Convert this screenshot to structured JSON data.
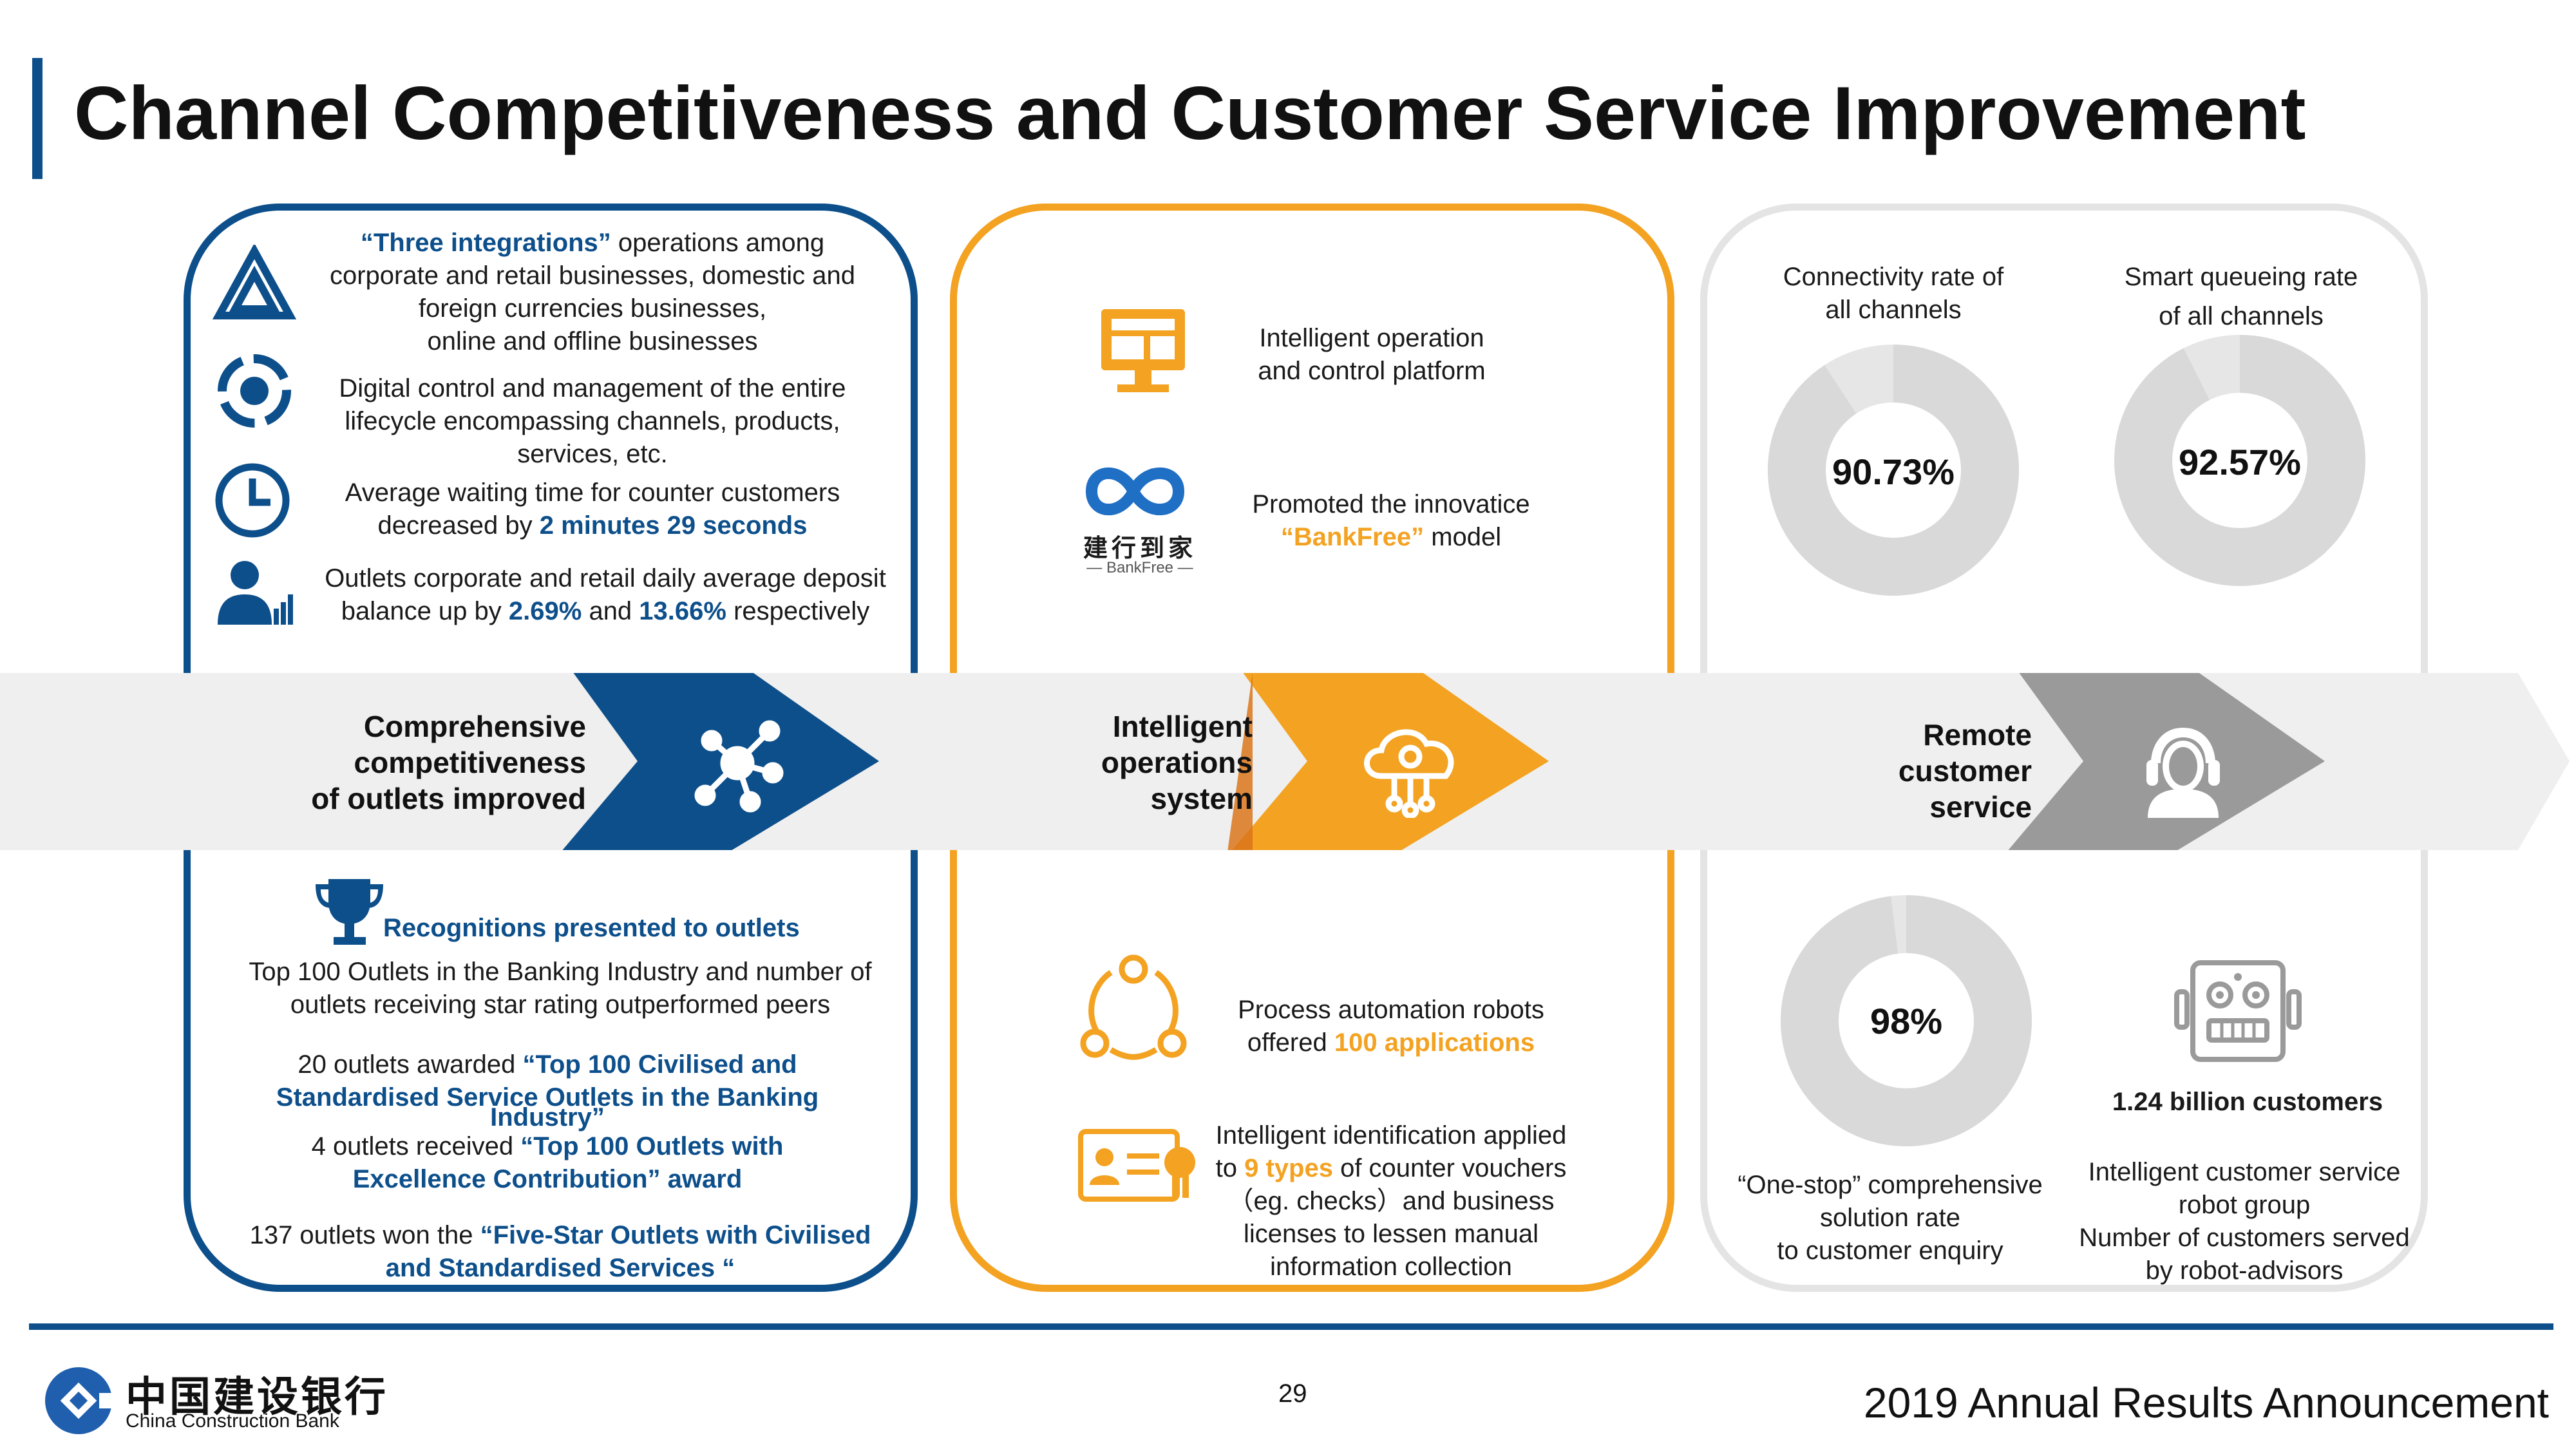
{
  "title": "Channel Competitiveness and Customer Service Improvement",
  "colors": {
    "brand_blue": "#0d4f8b",
    "accent_orange": "#f3a221",
    "gray": "#9a9a9a",
    "light_gray": "#e4e4e4"
  },
  "left": {
    "items": [
      {
        "icon": "triangle-integration-icon",
        "lines": [
          [
            "“Three integrations”",
            " operations among"
          ],
          [
            "corporate and retail businesses, domestic and"
          ],
          [
            "foreign currencies businesses,"
          ],
          [
            "online and offline businesses"
          ]
        ]
      },
      {
        "icon": "lifecycle-gear-icon",
        "lines": [
          [
            "Digital control and management of the entire"
          ],
          [
            "lifecycle encompassing channels, products,"
          ],
          [
            "services, etc."
          ]
        ]
      },
      {
        "icon": "clock-icon",
        "lines": [
          [
            "Average waiting time for counter customers"
          ],
          [
            "decreased by ",
            "2 minutes 29 seconds"
          ]
        ]
      },
      {
        "icon": "person-chart-icon",
        "lines": [
          [
            "Outlets corporate and retail daily average deposit"
          ],
          [
            "balance up by ",
            "2.69%",
            " and ",
            "13.66%",
            " respectively"
          ]
        ]
      }
    ],
    "band_label": [
      "Comprehensive",
      "competitiveness",
      "of outlets improved"
    ],
    "recognition_title": "Recognitions presented to outlets",
    "recognition_text": [
      "Top 100 Outlets in the Banking Industry and number of",
      "outlets receiving star rating outperformed peers"
    ],
    "award1": [
      "20 outlets awarded ",
      "“Top 100 Civilised and",
      "Standardised Service Outlets in the Banking",
      "Industry”"
    ],
    "award2": [
      "4 outlets received ",
      "“Top 100 Outlets with",
      "Excellence Contribution” award"
    ],
    "award3": [
      "137 outlets won the ",
      "“Five-Star Outlets with Civilised",
      "and Standardised Services “"
    ]
  },
  "middle": {
    "item1": [
      "Intelligent operation",
      "and control platform"
    ],
    "item2": [
      "Promoted the innovatice",
      "“BankFree”",
      " model"
    ],
    "bankfree_logo_cn": "建行到家",
    "bankfree_logo_en": "— BankFree —",
    "band_label": [
      "Intelligent",
      "operations",
      "system"
    ],
    "item3": [
      "Process automation robots",
      "offered ",
      "100 applications"
    ],
    "item4": [
      "Intelligent identification applied",
      "to ",
      "9 types",
      " of counter vouchers",
      "（eg. checks）and business",
      "licenses to lessen manual",
      "information collection"
    ]
  },
  "right": {
    "stat1": {
      "label": [
        "Connectivity rate of",
        "all channels"
      ],
      "value": "90.73%",
      "fraction": 0.9073
    },
    "stat2": {
      "label": [
        "Smart queueing rate",
        "of all channels"
      ],
      "value": "92.57%",
      "fraction": 0.9257
    },
    "band_label": [
      "Remote",
      "customer",
      "service"
    ],
    "stat3": {
      "label": [
        "“One-stop” comprehensive",
        "solution rate",
        "to customer enquiry"
      ],
      "value": "98%",
      "fraction": 0.98
    },
    "robot": {
      "value": "1.24 billion customers",
      "label": [
        "Intelligent customer service",
        "robot group",
        "Number of customers served",
        "by robot-advisors"
      ]
    }
  },
  "footer": {
    "page_number": "29",
    "announcement": "2019 Annual Results Announcement",
    "logo_cn": "中国建设银行",
    "logo_en": "China Construction Bank"
  }
}
